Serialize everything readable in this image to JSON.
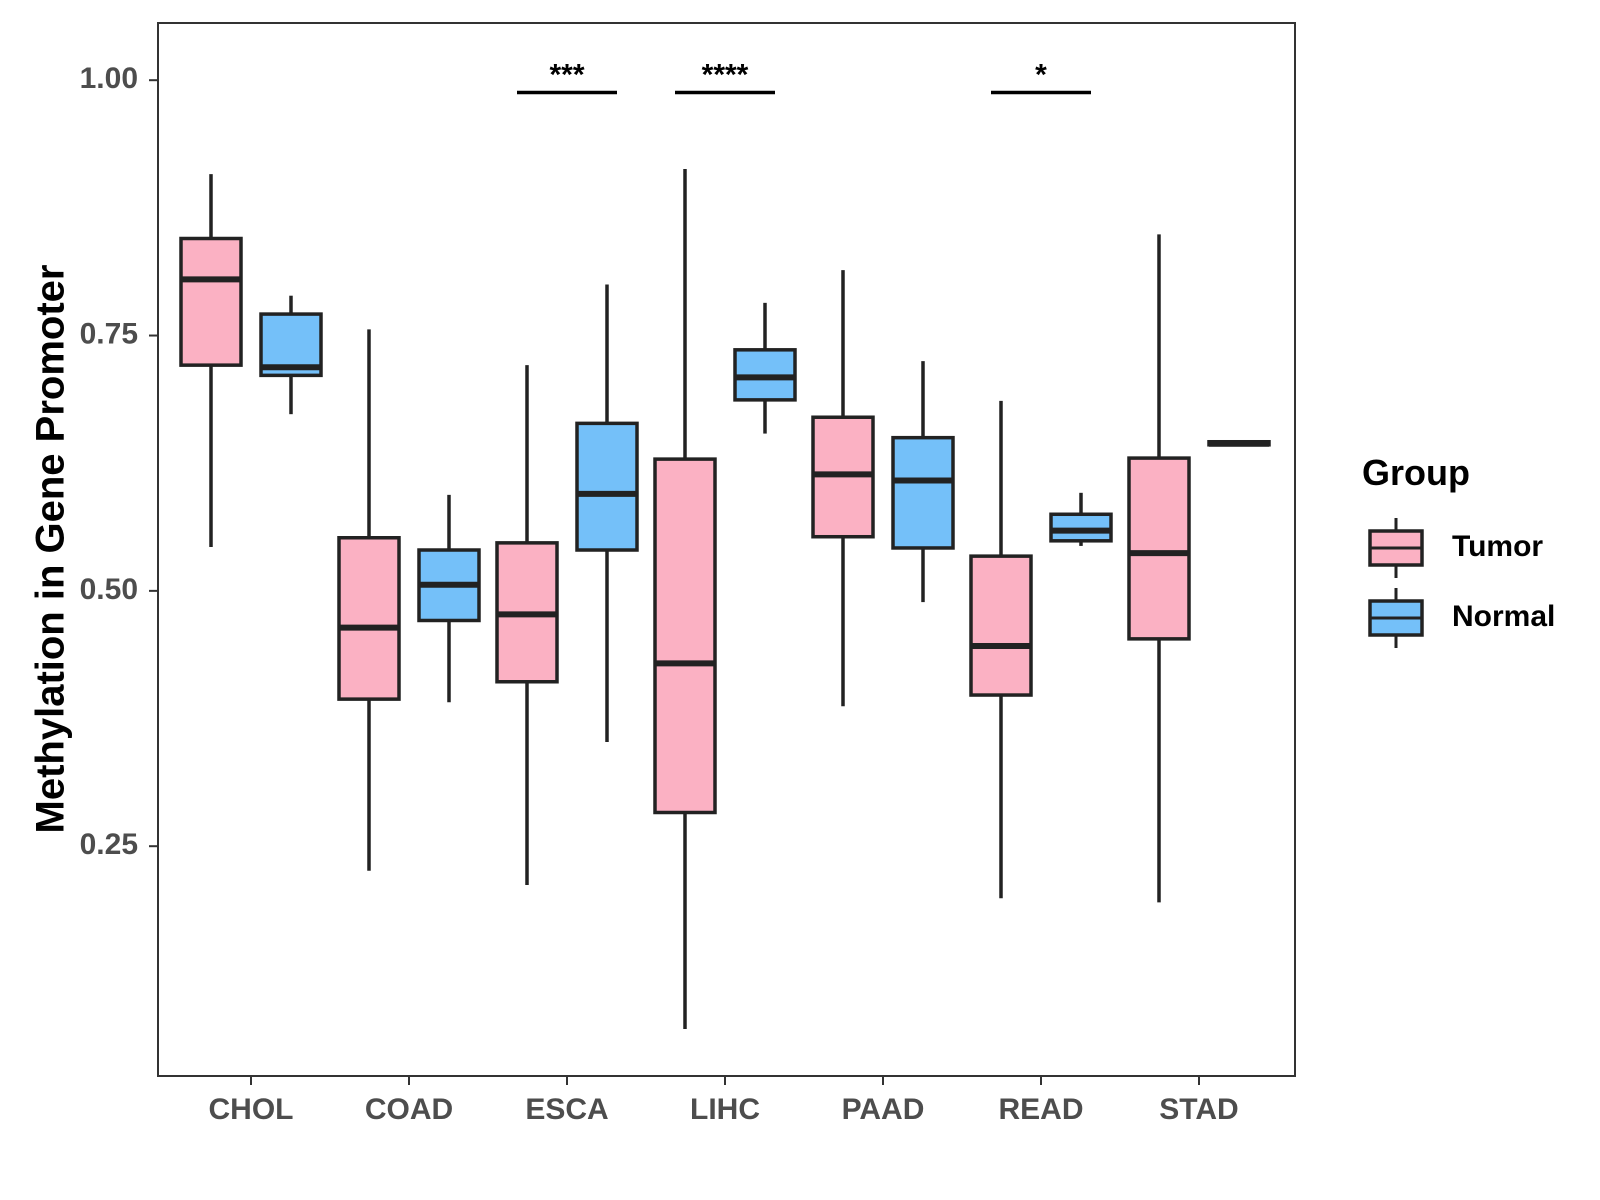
{
  "chart_data": {
    "type": "boxplot",
    "title": "",
    "xlabel": "",
    "ylabel": "Methylation in Gene Promoter",
    "ylim": [
      0.025,
      1.056
    ],
    "yticks": [
      0.25,
      0.5,
      0.75,
      1.0
    ],
    "ytick_labels": [
      "0.25",
      "0.50",
      "0.75",
      "1.00"
    ],
    "categories": [
      "CHOL",
      "COAD",
      "ESCA",
      "LIHC",
      "PAAD",
      "READ",
      "STAD"
    ],
    "legend": {
      "title": "Group",
      "position": "right",
      "entries": [
        {
          "name": "Tumor",
          "color": "#FBB1C3"
        },
        {
          "name": "Normal",
          "color": "#74C0F9"
        }
      ]
    },
    "series": [
      {
        "name": "Tumor",
        "color": "#FBB1C3",
        "boxes": [
          {
            "category": "CHOL",
            "min": 0.543,
            "q1": 0.721,
            "median": 0.805,
            "q3": 0.845,
            "max": 0.908
          },
          {
            "category": "COAD",
            "min": 0.226,
            "q1": 0.394,
            "median": 0.464,
            "q3": 0.552,
            "max": 0.756
          },
          {
            "category": "ESCA",
            "min": 0.212,
            "q1": 0.411,
            "median": 0.477,
            "q3": 0.547,
            "max": 0.721
          },
          {
            "category": "LIHC",
            "min": 0.071,
            "q1": 0.283,
            "median": 0.429,
            "q3": 0.629,
            "max": 0.913
          },
          {
            "category": "PAAD",
            "min": 0.387,
            "q1": 0.553,
            "median": 0.614,
            "q3": 0.67,
            "max": 0.814
          },
          {
            "category": "READ",
            "min": 0.199,
            "q1": 0.398,
            "median": 0.446,
            "q3": 0.534,
            "max": 0.686
          },
          {
            "category": "STAD",
            "min": 0.195,
            "q1": 0.453,
            "median": 0.537,
            "q3": 0.63,
            "max": 0.849
          }
        ]
      },
      {
        "name": "Normal",
        "color": "#74C0F9",
        "boxes": [
          {
            "category": "CHOL",
            "min": 0.673,
            "q1": 0.711,
            "median": 0.719,
            "q3": 0.771,
            "max": 0.789
          },
          {
            "category": "COAD",
            "min": 0.391,
            "q1": 0.471,
            "median": 0.506,
            "q3": 0.54,
            "max": 0.594
          },
          {
            "category": "ESCA",
            "min": 0.352,
            "q1": 0.54,
            "median": 0.595,
            "q3": 0.664,
            "max": 0.8
          },
          {
            "category": "LIHC",
            "min": 0.654,
            "q1": 0.687,
            "median": 0.709,
            "q3": 0.736,
            "max": 0.782
          },
          {
            "category": "PAAD",
            "min": 0.489,
            "q1": 0.542,
            "median": 0.608,
            "q3": 0.65,
            "max": 0.725
          },
          {
            "category": "READ",
            "min": 0.544,
            "q1": 0.549,
            "median": 0.559,
            "q3": 0.575,
            "max": 0.596
          },
          {
            "category": "STAD",
            "min": 0.643,
            "q1": 0.643,
            "median": 0.644,
            "q3": 0.646,
            "max": 0.646
          }
        ]
      }
    ],
    "significance": [
      {
        "category": "ESCA",
        "label": "***",
        "y": 0.988
      },
      {
        "category": "LIHC",
        "label": "****",
        "y": 0.988
      },
      {
        "category": "READ",
        "label": "*",
        "y": 0.988
      }
    ],
    "grid": false
  }
}
